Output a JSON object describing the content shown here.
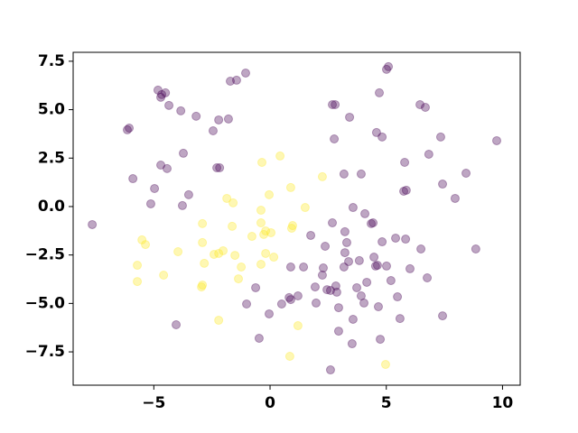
{
  "chart_data": {
    "type": "scatter",
    "xlim": [
      -8.47,
      10.76
    ],
    "ylim": [
      -9.22,
      7.96
    ],
    "xticks": [
      {
        "value": -5,
        "label": "−5"
      },
      0,
      5,
      10
    ],
    "yticks": [
      {
        "value": -7.5,
        "label": "−7.5"
      },
      {
        "value": -5,
        "label": "−5.0"
      },
      {
        "value": -2.5,
        "label": "−2.5"
      },
      {
        "value": 0,
        "label": "0.0"
      },
      {
        "value": 2.5,
        "label": "2.5"
      },
      {
        "value": 5,
        "label": "5.0"
      },
      {
        "value": 7.5,
        "label": "7.5"
      }
    ],
    "alpha": 0.35,
    "series": [
      {
        "color": "#440154",
        "x": [
          -7.65,
          -5.9,
          -6.06,
          -6.14,
          -4.82,
          -4.66,
          -4.5,
          -4.7,
          -4.35,
          -3.84,
          -3.18,
          -2.45,
          -2.21,
          -1.79,
          -2.29,
          -2.17,
          -3.73,
          -4.7,
          -4.43,
          -4.97,
          -5.13,
          -3.5,
          -3.77,
          -1.71,
          -1.44,
          -1.05,
          -4.04,
          -1.01,
          -0.62,
          -0.47,
          -0.04,
          0.5,
          0.82,
          0.89,
          0.89,
          1.2,
          1.44,
          1.75,
          1.94,
          1.98,
          2.29,
          2.25,
          2.37,
          2.45,
          2.6,
          2.83,
          2.87,
          2.95,
          2.95,
          3.18,
          3.3,
          3.53,
          3.57,
          3.22,
          3.38,
          3.73,
          3.84,
          3.92,
          4.04,
          4.16,
          4.35,
          4.47,
          4.54,
          4.66,
          4.62,
          4.82,
          5.01,
          5.2,
          5.48,
          5.59,
          5.4,
          5.83,
          6.49,
          6.76,
          6.02,
          4.74,
          2.6,
          2.68,
          3.22,
          3.57,
          4.08,
          4.43,
          2.8,
          2.68,
          3.42,
          2.76,
          3.18,
          3.92,
          4.58,
          4.82,
          4.7,
          5.09,
          5.01,
          5.79,
          5.75,
          5.86,
          6.45,
          6.68,
          6.83,
          7.34,
          7.42,
          7.96,
          8.43,
          8.85,
          9.75,
          7.42
        ],
        "values": [
          -0.93,
          1.44,
          4.05,
          3.96,
          6.01,
          5.78,
          5.87,
          5.64,
          5.22,
          4.94,
          4.66,
          3.91,
          4.47,
          4.52,
          2.0,
          2.0,
          2.75,
          2.14,
          1.96,
          0.93,
          0.14,
          0.61,
          0.05,
          6.47,
          6.52,
          6.89,
          -6.1,
          -5.03,
          -4.19,
          -6.8,
          -5.54,
          -5.03,
          -4.7,
          -3.12,
          -4.8,
          -4.61,
          -3.12,
          -1.49,
          -4.15,
          -4.98,
          -3.17,
          -3.54,
          -2.05,
          -4.29,
          -4.33,
          -4.1,
          -4.42,
          -5.22,
          -6.43,
          -3.12,
          -1.86,
          -7.08,
          -5.82,
          -2.38,
          -2.84,
          -4.19,
          -2.79,
          -4.61,
          -4.98,
          -3.91,
          -0.88,
          -2.61,
          -3.07,
          -5.17,
          -3.03,
          -1.82,
          -3.07,
          -3.82,
          -4.66,
          -5.78,
          -1.63,
          -1.68,
          -2.19,
          -3.68,
          -3.21,
          -6.85,
          -8.43,
          -0.84,
          -1.3,
          -0.05,
          -0.37,
          -0.84,
          5.26,
          5.26,
          4.61,
          3.49,
          1.68,
          1.68,
          3.82,
          3.59,
          5.87,
          7.22,
          7.08,
          2.28,
          0.79,
          0.84,
          5.26,
          5.12,
          2.7,
          3.59,
          1.16,
          0.42,
          1.72,
          -2.19,
          3.4,
          -5.64
        ]
      },
      {
        "color": "#fde725",
        "x": [
          -5.51,
          -5.36,
          -5.71,
          -5.71,
          -4.58,
          -3.96,
          -2.91,
          -2.91,
          -2.83,
          -2.91,
          -2.95,
          -2.41,
          -2.21,
          -2.02,
          -1.86,
          -1.59,
          -1.63,
          -1.51,
          -1.24,
          -1.36,
          -2.21,
          -0.78,
          -0.39,
          -0.35,
          -0.39,
          -0.19,
          -0.27,
          -0.04,
          0.04,
          0.16,
          -0.39,
          0.43,
          0.89,
          0.97,
          0.93,
          1.51,
          2.25,
          1.2,
          0.85,
          4.97,
          -0.19
        ],
        "values": [
          -1.72,
          -1.96,
          -3.03,
          -3.87,
          -3.54,
          -2.33,
          -0.88,
          -1.86,
          -2.93,
          -4.05,
          -4.15,
          -2.47,
          -2.42,
          -2.28,
          0.42,
          0.19,
          -1.02,
          -2.52,
          -3.12,
          -3.73,
          -5.87,
          -1.54,
          -0.19,
          2.28,
          -0.84,
          -1.26,
          -1.44,
          0.61,
          -1.35,
          -2.61,
          -2.98,
          2.61,
          0.98,
          -0.98,
          -1.12,
          -0.05,
          1.54,
          -6.15,
          -7.73,
          -8.15,
          -2.42
        ]
      }
    ]
  }
}
